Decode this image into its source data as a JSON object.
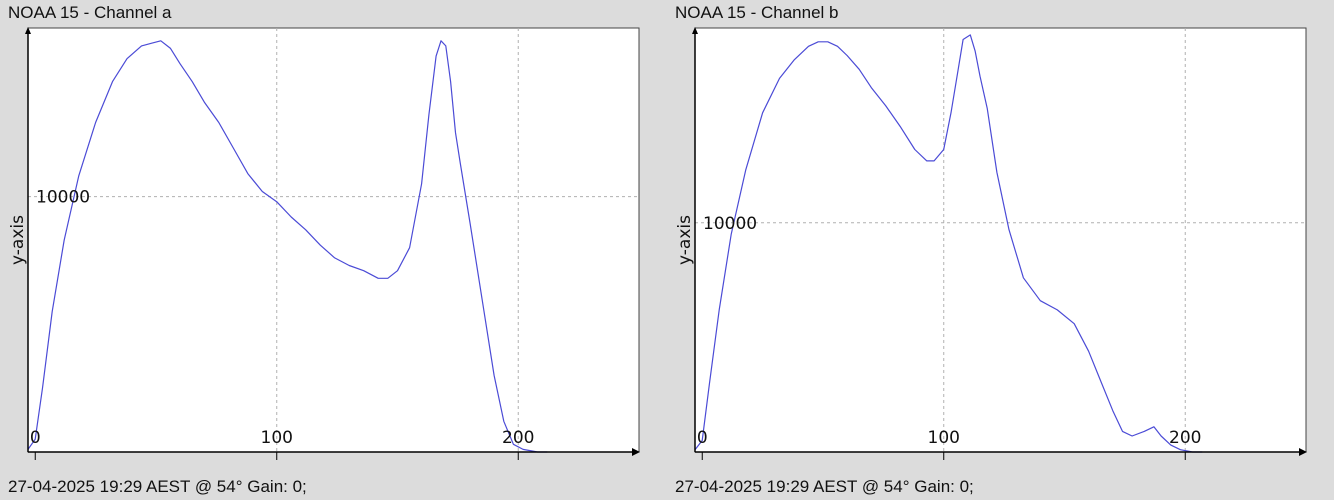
{
  "chart_data": [
    {
      "type": "line",
      "title": "NOAA 15 - Channel a",
      "footer": "27-04-2025 19:29 AEST @ 54° Gain: 0;",
      "xlabel": "",
      "ylabel": "y-axis",
      "xlim": [
        -3,
        250
      ],
      "ylim": [
        0,
        16600
      ],
      "xticks": [
        0,
        100,
        200
      ],
      "yticks": [
        10000
      ],
      "grid": true,
      "line_color": "#4b4bd6",
      "series": [
        {
          "x": [
            -3,
            0,
            3,
            7,
            12,
            18,
            25,
            32,
            38,
            44,
            48,
            52,
            56,
            60,
            65,
            70,
            76,
            82,
            88,
            94,
            100,
            106,
            112,
            118,
            124,
            130,
            136,
            142,
            146,
            150,
            155,
            160,
            163,
            166,
            168,
            170,
            172,
            174,
            176,
            180,
            185,
            190,
            194,
            198,
            202,
            208,
            212
          ],
          "y": [
            100,
            500,
            2500,
            5500,
            8300,
            10800,
            12900,
            14500,
            15400,
            15900,
            16000,
            16100,
            15800,
            15200,
            14500,
            13700,
            12900,
            11900,
            10900,
            10200,
            9800,
            9200,
            8700,
            8100,
            7600,
            7300,
            7100,
            6800,
            6800,
            7100,
            8000,
            10500,
            13200,
            15500,
            16100,
            15900,
            14500,
            12500,
            11300,
            9000,
            6000,
            3000,
            1200,
            300,
            100,
            0,
            0
          ]
        }
      ]
    },
    {
      "type": "line",
      "title": "NOAA 15 - Channel b",
      "footer": "27-04-2025 19:29 AEST @ 54° Gain: 0;",
      "xlabel": "",
      "ylabel": "y-axis",
      "xlim": [
        -3,
        250
      ],
      "ylim": [
        0,
        18500
      ],
      "xticks": [
        0,
        100,
        200
      ],
      "yticks": [
        10000
      ],
      "grid": true,
      "line_color": "#4b4bd6",
      "series": [
        {
          "x": [
            -3,
            0,
            3,
            7,
            12,
            18,
            25,
            32,
            38,
            44,
            48,
            52,
            56,
            60,
            65,
            70,
            76,
            82,
            88,
            93,
            96,
            100,
            103,
            106,
            108,
            111,
            113,
            115,
            118,
            122,
            127,
            133,
            140,
            147,
            154,
            160,
            165,
            170,
            174,
            178,
            183,
            187,
            190,
            194,
            198,
            203,
            207
          ],
          "y": [
            100,
            500,
            3000,
            6200,
            9500,
            12300,
            14800,
            16300,
            17100,
            17700,
            17900,
            17900,
            17700,
            17300,
            16700,
            15900,
            15100,
            14200,
            13200,
            12700,
            12700,
            13200,
            14800,
            16700,
            18000,
            18200,
            17500,
            16400,
            15000,
            12200,
            9700,
            7600,
            6600,
            6200,
            5600,
            4400,
            3100,
            1800,
            900,
            700,
            900,
            1100,
            700,
            300,
            100,
            0,
            0
          ]
        }
      ]
    }
  ]
}
